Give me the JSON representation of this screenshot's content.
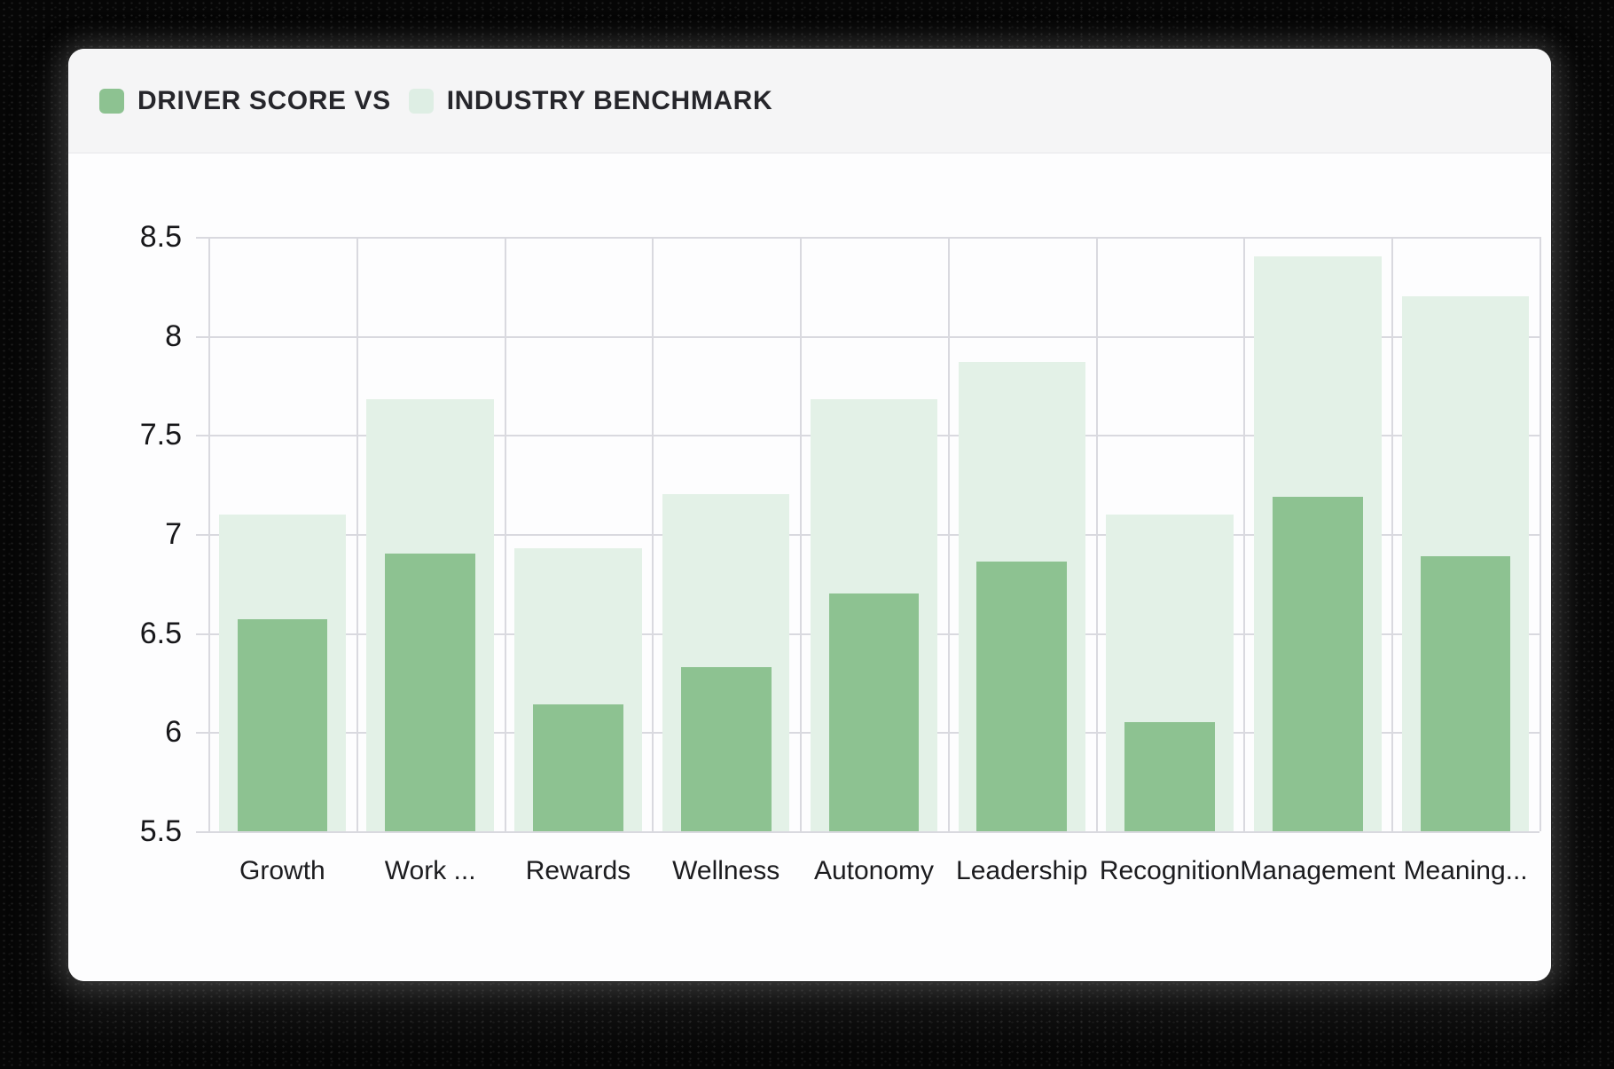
{
  "legend": {
    "items": [
      {
        "label": "DRIVER SCORE VS",
        "swatch_color": "#8dc291",
        "icon": "driver-score-swatch"
      },
      {
        "label": "INDUSTRY BENCHMARK",
        "swatch_color": "#deeee4",
        "icon": "industry-benchmark-swatch"
      }
    ]
  },
  "chart_data": {
    "type": "bar",
    "title": "DRIVER SCORE VS INDUSTRY BENCHMARK",
    "overlay_bars": true,
    "categories": [
      "Growth",
      "Work ...",
      "Rewards",
      "Wellness",
      "Autonomy",
      "Leadership",
      "Recognition",
      "Management",
      "Meaning..."
    ],
    "series": [
      {
        "name": "Industry Benchmark",
        "color": "#e3f1e7",
        "values": [
          7.1,
          7.68,
          6.93,
          7.2,
          7.68,
          7.87,
          7.1,
          8.4,
          8.2
        ]
      },
      {
        "name": "Driver Score",
        "color": "#8dc291",
        "values": [
          6.57,
          6.9,
          6.14,
          6.33,
          6.7,
          6.86,
          6.05,
          7.19,
          6.89
        ]
      }
    ],
    "ylim": [
      5.5,
      8.5
    ],
    "ytick_step": 0.5,
    "ytick_labels": [
      "8.5",
      "8",
      "7.5",
      "7",
      "6.5",
      "6",
      "5.5"
    ],
    "xlabel": "",
    "ylabel": "",
    "grid": true,
    "legend_position": "top-left-header"
  },
  "colors": {
    "gridline": "#d9d9df",
    "axis_text": "#17171a",
    "header_bg": "#f5f5f6",
    "card_bg": "#fdfdfe",
    "page_bg": "#060606"
  }
}
